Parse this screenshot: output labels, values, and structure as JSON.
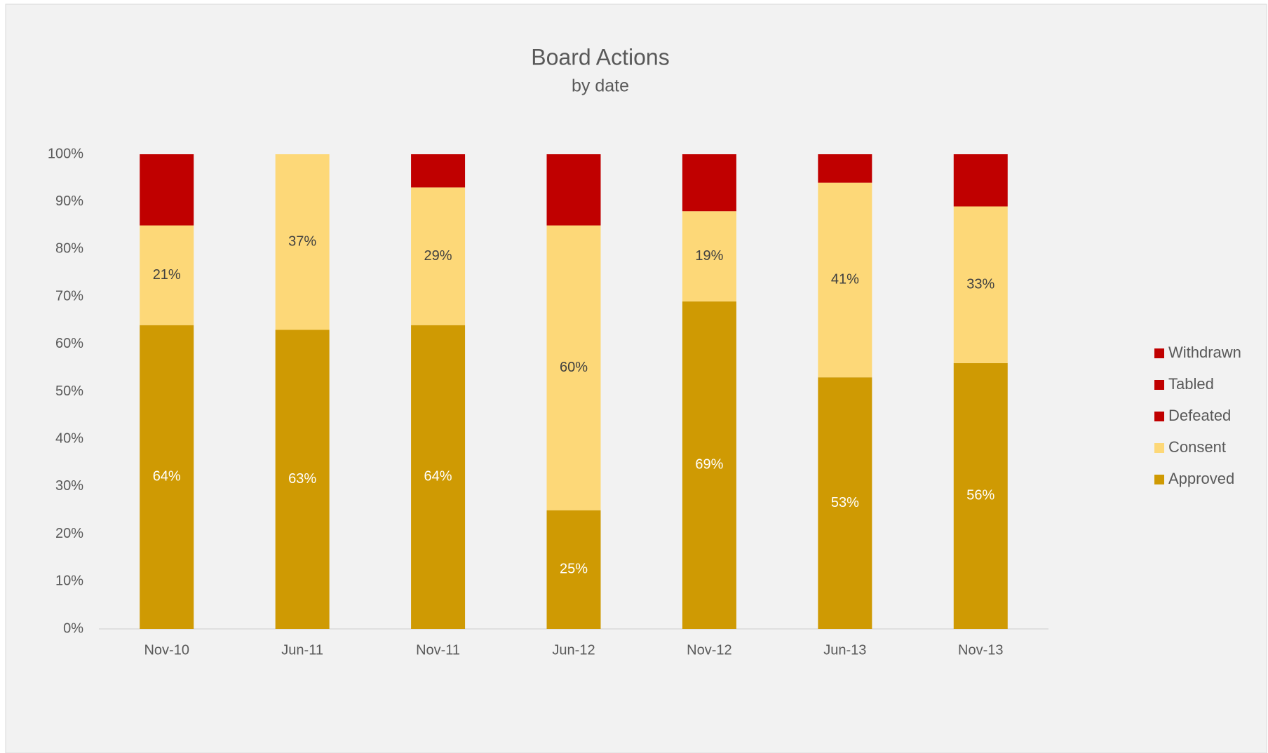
{
  "chart_data": {
    "type": "stacked_bar",
    "title": "Board Actions",
    "subtitle": "by date",
    "categories": [
      "Nov-10",
      "Jun-11",
      "Nov-11",
      "Jun-12",
      "Nov-12",
      "Jun-13",
      "Nov-13"
    ],
    "series": [
      {
        "name": "Approved",
        "color": "#cf9a03",
        "label_color": "#ffffff",
        "values": [
          64,
          63,
          64,
          25,
          69,
          53,
          56
        ],
        "value_labels": [
          "64%",
          "63%",
          "64%",
          "25%",
          "69%",
          "53%",
          "56%"
        ]
      },
      {
        "name": "Consent",
        "color": "#fdd878",
        "label_color": "#404040",
        "values": [
          21,
          37,
          29,
          60,
          19,
          41,
          33
        ],
        "value_labels": [
          "21%",
          "37%",
          "29%",
          "60%",
          "19%",
          "41%",
          "33%"
        ]
      },
      {
        "name": "Defeated",
        "color": "#c00000",
        "values": [
          15,
          0,
          7,
          15,
          12,
          6,
          11
        ]
      },
      {
        "name": "Tabled",
        "color": "#c00000",
        "values": [
          0,
          0,
          0,
          0,
          0,
          0,
          0
        ]
      },
      {
        "name": "Withdrawn",
        "color": "#c00000",
        "values": [
          0,
          0,
          0,
          0,
          0,
          0,
          0
        ]
      }
    ],
    "ylim": [
      0,
      100
    ],
    "yticks": [
      {
        "value": 0,
        "label": "0%"
      },
      {
        "value": 10,
        "label": "10%"
      },
      {
        "value": 20,
        "label": "20%"
      },
      {
        "value": 30,
        "label": "30%"
      },
      {
        "value": 40,
        "label": "40%"
      },
      {
        "value": 50,
        "label": "50%"
      },
      {
        "value": 60,
        "label": "60%"
      },
      {
        "value": 70,
        "label": "70%"
      },
      {
        "value": 80,
        "label": "80%"
      },
      {
        "value": 90,
        "label": "90%"
      },
      {
        "value": 100,
        "label": "100%"
      }
    ],
    "legend": "right"
  }
}
